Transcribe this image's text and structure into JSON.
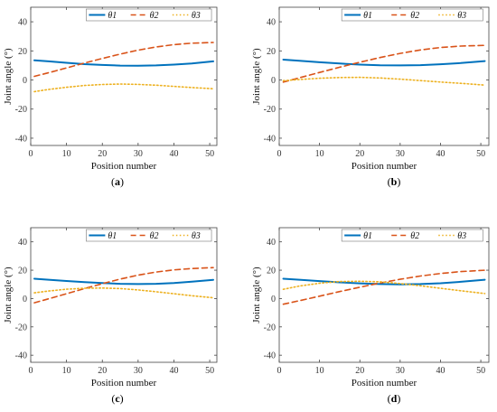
{
  "chart_data": [
    {
      "type": "line",
      "caption_letter": "a",
      "xlabel": "Position number",
      "ylabel": "Joint angle (°)",
      "xlim": [
        0,
        52
      ],
      "ylim": [
        -45,
        50
      ],
      "xticks": [
        0,
        10,
        20,
        30,
        40,
        50
      ],
      "yticks": [
        -40,
        -20,
        0,
        20,
        40
      ],
      "grid": false,
      "legend_position": "top",
      "series": [
        {
          "name": "θ1",
          "color": "#0072BD",
          "style": "solid",
          "x": [
            1,
            5,
            10,
            15,
            20,
            25,
            30,
            35,
            40,
            45,
            51
          ],
          "y": [
            13.5,
            12.8,
            11.8,
            10.9,
            10.3,
            9.9,
            9.8,
            10.0,
            10.6,
            11.4,
            12.8
          ]
        },
        {
          "name": "θ2",
          "color": "#D95319",
          "style": "dashed",
          "x": [
            1,
            5,
            10,
            15,
            20,
            25,
            30,
            35,
            40,
            45,
            51
          ],
          "y": [
            2.5,
            5.0,
            8.3,
            11.6,
            14.8,
            17.8,
            20.5,
            22.7,
            24.3,
            25.3,
            25.8
          ]
        },
        {
          "name": "θ3",
          "color": "#EDB120",
          "style": "dotted",
          "x": [
            1,
            5,
            10,
            15,
            20,
            25,
            30,
            35,
            40,
            45,
            51
          ],
          "y": [
            -8.0,
            -6.5,
            -5.0,
            -3.8,
            -3.1,
            -2.8,
            -3.0,
            -3.6,
            -4.4,
            -5.2,
            -6.0
          ]
        }
      ]
    },
    {
      "type": "line",
      "caption_letter": "b",
      "xlabel": "Position number",
      "ylabel": "Joint angle (°)",
      "xlim": [
        0,
        52
      ],
      "ylim": [
        -45,
        50
      ],
      "xticks": [
        0,
        10,
        20,
        30,
        40,
        50
      ],
      "yticks": [
        -40,
        -20,
        0,
        20,
        40
      ],
      "grid": false,
      "legend_position": "top",
      "series": [
        {
          "name": "θ1",
          "color": "#0072BD",
          "style": "solid",
          "x": [
            1,
            5,
            10,
            15,
            20,
            25,
            30,
            35,
            40,
            45,
            51
          ],
          "y": [
            14.0,
            13.2,
            12.2,
            11.3,
            10.6,
            10.1,
            10.0,
            10.2,
            10.8,
            11.6,
            13.0
          ]
        },
        {
          "name": "θ2",
          "color": "#D95319",
          "style": "dashed",
          "x": [
            1,
            5,
            10,
            15,
            20,
            25,
            30,
            35,
            40,
            45,
            51
          ],
          "y": [
            -1.5,
            1.5,
            5.2,
            8.8,
            12.2,
            15.4,
            18.3,
            20.6,
            22.3,
            23.3,
            23.8
          ]
        },
        {
          "name": "θ3",
          "color": "#EDB120",
          "style": "dotted",
          "x": [
            1,
            5,
            10,
            15,
            20,
            25,
            30,
            35,
            40,
            45,
            51
          ],
          "y": [
            -0.5,
            0.3,
            1.2,
            1.7,
            1.8,
            1.4,
            0.6,
            -0.4,
            -1.4,
            -2.3,
            -3.5
          ]
        }
      ]
    },
    {
      "type": "line",
      "caption_letter": "c",
      "xlabel": "Position number",
      "ylabel": "Joint angle (°)",
      "xlim": [
        0,
        52
      ],
      "ylim": [
        -45,
        50
      ],
      "xticks": [
        0,
        10,
        20,
        30,
        40,
        50
      ],
      "yticks": [
        -40,
        -20,
        0,
        20,
        40
      ],
      "grid": false,
      "legend_position": "top",
      "series": [
        {
          "name": "θ1",
          "color": "#0072BD",
          "style": "solid",
          "x": [
            1,
            5,
            10,
            15,
            20,
            25,
            30,
            35,
            40,
            45,
            51
          ],
          "y": [
            14.0,
            13.3,
            12.4,
            11.6,
            10.9,
            10.4,
            10.2,
            10.4,
            11.0,
            11.9,
            13.2
          ]
        },
        {
          "name": "θ2",
          "color": "#D95319",
          "style": "dashed",
          "x": [
            1,
            5,
            10,
            15,
            20,
            25,
            30,
            35,
            40,
            45,
            51
          ],
          "y": [
            -3.0,
            -0.2,
            3.4,
            7.0,
            10.5,
            13.7,
            16.5,
            18.7,
            20.2,
            21.2,
            21.8
          ]
        },
        {
          "name": "θ3",
          "color": "#EDB120",
          "style": "dotted",
          "x": [
            1,
            5,
            10,
            15,
            20,
            25,
            30,
            35,
            40,
            45,
            51
          ],
          "y": [
            4.0,
            5.3,
            6.6,
            7.3,
            7.4,
            7.0,
            6.1,
            4.8,
            3.4,
            2.0,
            0.5
          ]
        }
      ]
    },
    {
      "type": "line",
      "caption_letter": "d",
      "xlabel": "Position number",
      "ylabel": "Joint angle (°)",
      "xlim": [
        0,
        52
      ],
      "ylim": [
        -45,
        50
      ],
      "xticks": [
        0,
        10,
        20,
        30,
        40,
        50
      ],
      "yticks": [
        -40,
        -20,
        0,
        20,
        40
      ],
      "grid": false,
      "legend_position": "top",
      "series": [
        {
          "name": "θ1",
          "color": "#0072BD",
          "style": "solid",
          "x": [
            1,
            5,
            10,
            15,
            20,
            25,
            30,
            35,
            40,
            45,
            51
          ],
          "y": [
            14.0,
            13.3,
            12.3,
            11.4,
            10.7,
            10.2,
            10.0,
            10.2,
            10.8,
            11.8,
            13.3
          ]
        },
        {
          "name": "θ2",
          "color": "#D95319",
          "style": "dashed",
          "x": [
            1,
            5,
            10,
            15,
            20,
            25,
            30,
            35,
            40,
            45,
            51
          ],
          "y": [
            -4.0,
            -1.5,
            1.7,
            4.9,
            8.0,
            11.0,
            13.6,
            15.9,
            17.7,
            19.0,
            20.0
          ]
        },
        {
          "name": "θ3",
          "color": "#EDB120",
          "style": "dotted",
          "x": [
            1,
            5,
            10,
            15,
            20,
            25,
            30,
            35,
            40,
            45,
            51
          ],
          "y": [
            6.5,
            8.8,
            10.8,
            12.0,
            12.2,
            11.8,
            10.6,
            9.0,
            7.2,
            5.5,
            3.5
          ]
        }
      ]
    }
  ]
}
